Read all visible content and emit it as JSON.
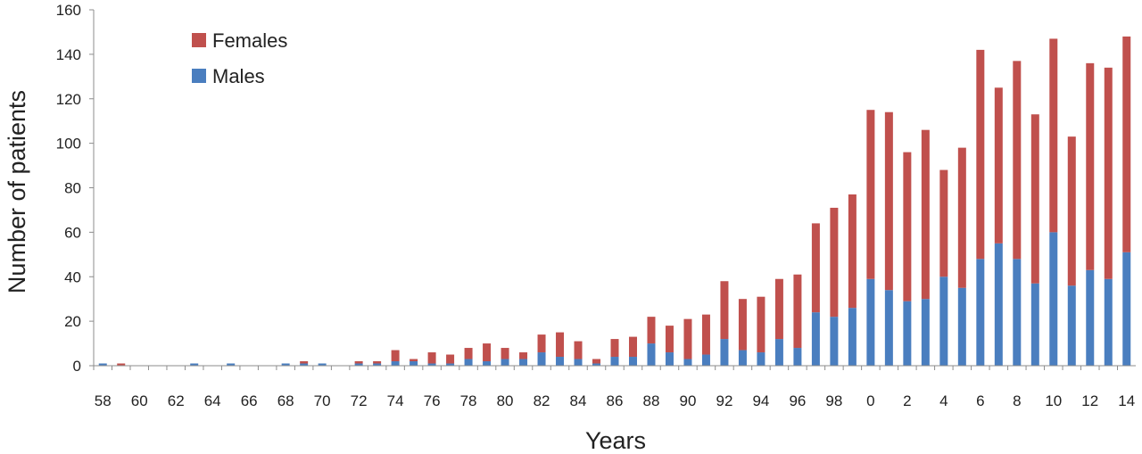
{
  "chart_data": {
    "type": "bar",
    "stacked": true,
    "xlabel": "Years",
    "ylabel": "Number of patients",
    "ylim": [
      0,
      160
    ],
    "yticks": [
      0,
      20,
      40,
      60,
      80,
      100,
      120,
      140,
      160
    ],
    "grid": false,
    "legend_position": "top-left",
    "categories": [
      "58",
      "59",
      "60",
      "61",
      "62",
      "63",
      "64",
      "65",
      "66",
      "67",
      "68",
      "69",
      "70",
      "71",
      "72",
      "73",
      "74",
      "75",
      "76",
      "77",
      "78",
      "79",
      "80",
      "81",
      "82",
      "83",
      "84",
      "85",
      "86",
      "87",
      "88",
      "89",
      "90",
      "91",
      "92",
      "93",
      "94",
      "95",
      "96",
      "97",
      "98",
      "99",
      "0",
      "1",
      "2",
      "3",
      "4",
      "5",
      "6",
      "7",
      "8",
      "9",
      "10",
      "11",
      "12",
      "13",
      "14"
    ],
    "xtick_labels": [
      "58",
      "",
      "60",
      "",
      "62",
      "",
      "64",
      "",
      "66",
      "",
      "68",
      "",
      "70",
      "",
      "72",
      "",
      "74",
      "",
      "76",
      "",
      "78",
      "",
      "80",
      "",
      "82",
      "",
      "84",
      "",
      "86",
      "",
      "88",
      "",
      "90",
      "",
      "92",
      "",
      "94",
      "",
      "96",
      "",
      "98",
      "",
      "0",
      "",
      "2",
      "",
      "4",
      "",
      "6",
      "",
      "8",
      "",
      "10",
      "",
      "12",
      "",
      "14"
    ],
    "series": [
      {
        "name": "Males",
        "color": "#4a7ebf",
        "values": [
          1,
          0,
          0,
          0,
          0,
          1,
          0,
          1,
          0,
          0,
          1,
          1,
          1,
          0,
          1,
          1,
          2,
          2,
          1,
          1,
          3,
          2,
          3,
          3,
          6,
          4,
          3,
          1,
          4,
          4,
          10,
          6,
          3,
          5,
          12,
          7,
          6,
          12,
          8,
          24,
          22,
          26,
          39,
          34,
          29,
          30,
          40,
          35,
          48,
          55,
          48,
          37,
          60,
          36,
          43,
          39,
          51
        ]
      },
      {
        "name": "Females",
        "color": "#c0504d",
        "values": [
          0,
          1,
          0,
          0,
          0,
          0,
          0,
          0,
          0,
          0,
          0,
          1,
          0,
          0,
          1,
          1,
          5,
          1,
          5,
          4,
          5,
          8,
          5,
          3,
          8,
          11,
          8,
          2,
          8,
          9,
          12,
          12,
          18,
          18,
          26,
          23,
          25,
          27,
          33,
          40,
          49,
          51,
          76,
          80,
          67,
          76,
          48,
          63,
          94,
          70,
          89,
          76,
          87,
          67,
          93,
          95,
          97
        ]
      }
    ],
    "legend": [
      "Females",
      "Males"
    ]
  }
}
